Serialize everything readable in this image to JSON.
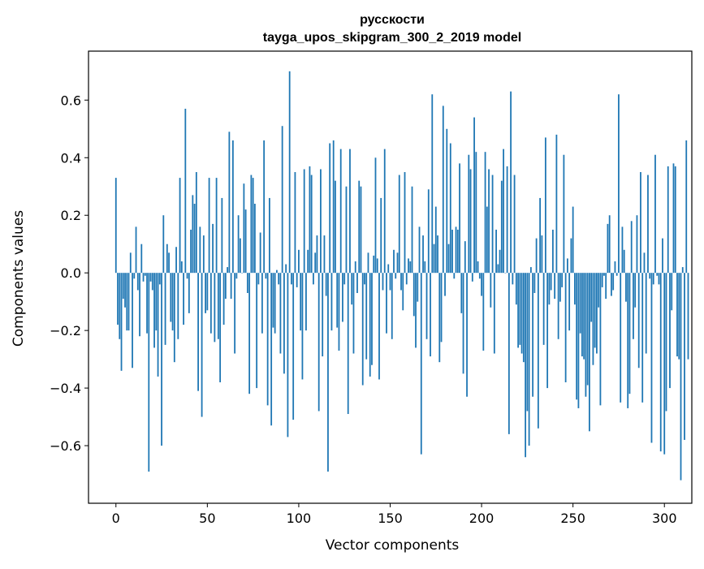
{
  "colors": {
    "bar": "#1f77b4",
    "axis": "#000000",
    "background": "#ffffff"
  },
  "chart_data": {
    "type": "bar",
    "title": "русскости",
    "subtitle": "tayga_upos_skipgram_300_2_2019 model",
    "xlabel": "Vector components",
    "ylabel": "Components values",
    "xlim": [
      -15,
      315
    ],
    "ylim": [
      -0.8,
      0.77
    ],
    "xticks": [
      0,
      50,
      100,
      150,
      200,
      250,
      300
    ],
    "xtick_labels": [
      "0",
      "50",
      "100",
      "150",
      "200",
      "250",
      "300"
    ],
    "yticks": [
      -0.6,
      -0.4,
      -0.2,
      0.0,
      0.2,
      0.4,
      0.6
    ],
    "ytick_labels": [
      "−0.6",
      "−0.4",
      "−0.2",
      "0.0",
      "0.2",
      "0.4",
      "0.6"
    ],
    "grid": false,
    "series": [
      {
        "values": [
          0.33,
          -0.18,
          -0.23,
          -0.34,
          -0.09,
          -0.12,
          -0.2,
          -0.2,
          0.07,
          -0.33,
          -0.02,
          0.16,
          -0.06,
          -0.22,
          0.1,
          -0.03,
          -0.01,
          -0.21,
          -0.69,
          -0.03,
          -0.06,
          -0.26,
          -0.2,
          -0.36,
          -0.04,
          -0.6,
          0.2,
          -0.25,
          0.1,
          0.07,
          -0.17,
          -0.2,
          -0.31,
          0.09,
          -0.23,
          0.33,
          0.04,
          -0.18,
          0.57,
          -0.02,
          -0.14,
          0.15,
          0.27,
          0.24,
          0.35,
          -0.41,
          0.16,
          -0.5,
          0.13,
          -0.14,
          -0.13,
          0.33,
          -0.21,
          0.17,
          -0.24,
          0.33,
          -0.23,
          -0.38,
          0.26,
          -0.18,
          -0.09,
          0.02,
          0.49,
          -0.09,
          0.46,
          -0.28,
          -0.02,
          0.2,
          0.12,
          0.0,
          0.31,
          0.22,
          -0.07,
          -0.42,
          0.34,
          0.33,
          0.24,
          -0.4,
          -0.04,
          0.14,
          -0.21,
          0.46,
          -0.02,
          -0.46,
          0.26,
          -0.53,
          -0.19,
          -0.21,
          0.01,
          -0.04,
          -0.28,
          0.51,
          -0.35,
          0.03,
          -0.57,
          0.7,
          -0.04,
          -0.51,
          0.35,
          -0.05,
          0.08,
          -0.2,
          -0.37,
          0.36,
          -0.2,
          0.08,
          0.37,
          0.34,
          -0.04,
          0.07,
          0.13,
          -0.48,
          0.36,
          -0.29,
          0.13,
          -0.08,
          -0.69,
          0.45,
          -0.2,
          0.46,
          0.32,
          -0.19,
          -0.27,
          0.43,
          -0.17,
          -0.04,
          0.3,
          -0.49,
          0.43,
          -0.11,
          -0.28,
          0.04,
          -0.07,
          0.32,
          0.3,
          -0.39,
          -0.04,
          -0.3,
          0.07,
          -0.36,
          -0.32,
          0.06,
          0.4,
          0.05,
          -0.37,
          0.26,
          -0.06,
          0.43,
          -0.21,
          0.03,
          -0.06,
          -0.23,
          0.08,
          -0.02,
          0.07,
          0.34,
          -0.06,
          -0.13,
          0.35,
          -0.04,
          0.05,
          0.04,
          0.3,
          -0.15,
          -0.26,
          -0.1,
          0.16,
          -0.63,
          0.13,
          0.04,
          -0.23,
          0.29,
          -0.29,
          0.62,
          0.1,
          0.23,
          0.13,
          -0.31,
          -0.24,
          0.58,
          -0.08,
          0.5,
          0.1,
          0.45,
          0.15,
          -0.02,
          0.16,
          0.15,
          0.38,
          -0.14,
          -0.35,
          0.11,
          -0.43,
          0.41,
          0.36,
          -0.03,
          0.54,
          0.42,
          0.04,
          -0.02,
          -0.08,
          -0.27,
          0.42,
          0.23,
          0.36,
          -0.12,
          0.34,
          -0.28,
          0.15,
          0.03,
          0.08,
          0.32,
          0.43,
          0.0,
          0.37,
          -0.56,
          0.63,
          -0.04,
          0.34,
          -0.11,
          -0.26,
          -0.25,
          -0.28,
          -0.31,
          -0.64,
          -0.48,
          -0.6,
          0.02,
          -0.43,
          -0.07,
          0.12,
          -0.54,
          0.26,
          0.13,
          -0.25,
          0.47,
          -0.4,
          -0.11,
          -0.06,
          0.15,
          -0.09,
          0.48,
          -0.23,
          -0.1,
          -0.05,
          0.41,
          -0.38,
          0.05,
          -0.2,
          0.12,
          0.23,
          -0.11,
          -0.44,
          -0.47,
          -0.21,
          -0.29,
          -0.3,
          -0.43,
          -0.39,
          -0.55,
          -0.17,
          -0.32,
          -0.26,
          -0.28,
          -0.12,
          -0.46,
          -0.05,
          -0.01,
          -0.09,
          0.17,
          0.2,
          -0.08,
          -0.06,
          0.04,
          -0.01,
          0.62,
          -0.45,
          0.16,
          0.08,
          -0.1,
          -0.47,
          -0.42,
          0.18,
          -0.23,
          -0.12,
          0.2,
          -0.33,
          0.35,
          -0.45,
          0.07,
          -0.28,
          0.34,
          -0.02,
          -0.59,
          -0.04,
          0.41,
          -0.01,
          -0.04,
          -0.62,
          0.12,
          -0.63,
          -0.48,
          0.37,
          -0.4,
          -0.13,
          0.38,
          0.37,
          -0.29,
          -0.3,
          -0.72,
          0.02,
          -0.58,
          0.46,
          -0.3
        ]
      }
    ]
  }
}
